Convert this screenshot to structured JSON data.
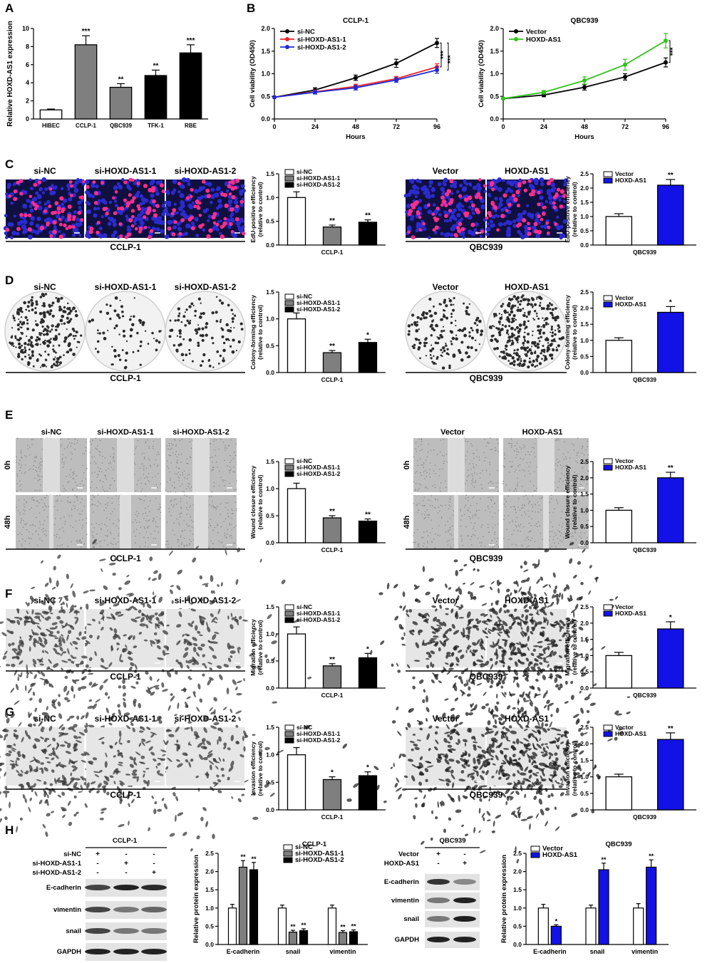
{
  "colors": {
    "red": "#e8242b",
    "blue": "#1f2ad8",
    "green": "#33c21f",
    "gray": "#7f7f7f",
    "black": "#000000",
    "white": "#ffffff",
    "strongBlue": "#1212e6",
    "nucleus": "#2b2bd0",
    "edu": "#ff2e8a"
  },
  "chart_data": [
    {
      "id": "A",
      "panel": "A",
      "type": "bar",
      "ylabel": "Relative HOXD-AS1 expression",
      "ylim": [
        0,
        10
      ],
      "yticks": [
        0,
        2,
        4,
        6,
        8,
        10
      ],
      "categories": [
        "HIBEC",
        "CCLP-1",
        "QBC939",
        "TFK-1",
        "RBE"
      ],
      "values": [
        1.0,
        8.2,
        3.5,
        4.8,
        7.3
      ],
      "errors": [
        0.1,
        1.0,
        0.4,
        0.6,
        0.9
      ],
      "fills": [
        "white",
        "gray",
        "gray",
        "black",
        "black"
      ],
      "sig": [
        "",
        "***",
        "**",
        "**",
        "***"
      ]
    },
    {
      "id": "B1",
      "panel": "B",
      "type": "line",
      "title": "CCLP-1",
      "xlabel": "Hours",
      "ylabel": "Cell viability (OD450)",
      "ylim": [
        0,
        2.0
      ],
      "yticks": [
        0,
        0.5,
        1.0,
        1.5,
        2.0
      ],
      "x": [
        0,
        24,
        48,
        72,
        96
      ],
      "series": [
        {
          "name": "si-NC",
          "color": "black",
          "values": [
            0.48,
            0.64,
            0.91,
            1.23,
            1.68
          ],
          "errors": [
            0,
            0.05,
            0.06,
            0.09,
            0.1
          ]
        },
        {
          "name": "si-HOXD-AS1-1",
          "color": "red",
          "values": [
            0.48,
            0.6,
            0.72,
            0.89,
            1.15
          ],
          "errors": [
            0,
            0.04,
            0.05,
            0.05,
            0.07
          ]
        },
        {
          "name": "si-HOXD-AS1-2",
          "color": "blue",
          "values": [
            0.48,
            0.59,
            0.69,
            0.86,
            1.08
          ],
          "errors": [
            0,
            0.04,
            0.05,
            0.05,
            0.07
          ]
        }
      ],
      "sig": [
        "***",
        "***"
      ]
    },
    {
      "id": "B2",
      "panel": "",
      "type": "line",
      "title": "QBC939",
      "xlabel": "Hours",
      "ylabel": "Cell viability (OD450)",
      "ylim": [
        0,
        2.0
      ],
      "yticks": [
        0,
        0.5,
        1.0,
        1.5,
        2.0
      ],
      "x": [
        0,
        24,
        48,
        72,
        96
      ],
      "series": [
        {
          "name": "Vector",
          "color": "black",
          "values": [
            0.45,
            0.53,
            0.7,
            0.93,
            1.25
          ],
          "errors": [
            0,
            0.04,
            0.06,
            0.07,
            0.1
          ]
        },
        {
          "name": "HOXD-AS1",
          "color": "green",
          "values": [
            0.45,
            0.59,
            0.85,
            1.2,
            1.73
          ],
          "errors": [
            0,
            0.04,
            0.08,
            0.12,
            0.16
          ]
        }
      ],
      "sig": [
        "***"
      ]
    },
    {
      "id": "C1",
      "panel": "",
      "type": "bar",
      "ylabel": "EdU-positive efficiency (relative to control)",
      "xlabel": "CCLP-1",
      "ylim": [
        0,
        1.5
      ],
      "yticks": [
        0,
        0.5,
        1.0,
        1.5
      ],
      "legend": [
        "si-NC",
        "si-HOXD-AS1-1",
        "si-HOXD-AS1-2"
      ],
      "fills": [
        "white",
        "gray",
        "black"
      ],
      "values": [
        1.0,
        0.38,
        0.48
      ],
      "errors": [
        0.12,
        0.04,
        0.05
      ],
      "sig": [
        "",
        "**",
        "**"
      ]
    },
    {
      "id": "C2",
      "panel": "",
      "type": "bar",
      "ylabel": "EdU-positive efficiency (relative to control)",
      "xlabel": "QBC939",
      "ylim": [
        0,
        2.5
      ],
      "yticks": [
        0,
        0.5,
        1.0,
        1.5,
        2.0,
        2.5
      ],
      "legend": [
        "Vector",
        "HOXD-AS1"
      ],
      "fills": [
        "white",
        "strongBlue"
      ],
      "values": [
        1.0,
        2.1
      ],
      "errors": [
        0.1,
        0.2
      ],
      "sig": [
        "",
        "**"
      ]
    },
    {
      "id": "D1",
      "panel": "",
      "type": "bar",
      "ylabel": "Colony-forming efficiency (relative to control)",
      "xlabel": "CCLP-1",
      "ylim": [
        0,
        1.5
      ],
      "yticks": [
        0,
        0.5,
        1.0,
        1.5
      ],
      "legend": [
        "si-NC",
        "si-HOXD-AS1-1",
        "si-HOXD-AS1-2"
      ],
      "fills": [
        "white",
        "gray",
        "black"
      ],
      "values": [
        1.0,
        0.37,
        0.56
      ],
      "errors": [
        0.11,
        0.04,
        0.06
      ],
      "sig": [
        "",
        "**",
        "*"
      ]
    },
    {
      "id": "D2",
      "panel": "",
      "type": "bar",
      "ylabel": "Colony-forming efficiency (relative to control)",
      "xlabel": "QBC939",
      "ylim": [
        0,
        2.5
      ],
      "yticks": [
        0,
        0.5,
        1.0,
        1.5,
        2.0,
        2.5
      ],
      "legend": [
        "Vector",
        "HOXD-AS1"
      ],
      "fills": [
        "white",
        "strongBlue"
      ],
      "values": [
        1.0,
        1.87
      ],
      "errors": [
        0.08,
        0.18
      ],
      "sig": [
        "",
        "*"
      ]
    },
    {
      "id": "E1",
      "panel": "",
      "type": "bar",
      "ylabel": "Wound closure efficiency (relative to control)",
      "xlabel": "CCLP-1",
      "ylim": [
        0,
        1.5
      ],
      "yticks": [
        0,
        0.5,
        1.0,
        1.5
      ],
      "legend": [
        "si-NC",
        "si-HOXD-AS1-1",
        "si-HOXD-AS1-2"
      ],
      "fills": [
        "white",
        "gray",
        "black"
      ],
      "values": [
        1.0,
        0.46,
        0.4
      ],
      "errors": [
        0.1,
        0.04,
        0.04
      ],
      "sig": [
        "",
        "**",
        "**"
      ]
    },
    {
      "id": "E2",
      "panel": "",
      "type": "bar",
      "ylabel": "Wound closure efficiency (relative to control)",
      "xlabel": "QBC939",
      "ylim": [
        0,
        2.5
      ],
      "yticks": [
        0,
        0.5,
        1.0,
        1.5,
        2.0,
        2.5
      ],
      "legend": [
        "Vector",
        "HOXD-AS1"
      ],
      "fills": [
        "white",
        "strongBlue"
      ],
      "values": [
        1.0,
        2.0
      ],
      "errors": [
        0.08,
        0.17
      ],
      "sig": [
        "",
        "**"
      ]
    },
    {
      "id": "F1",
      "panel": "",
      "type": "bar",
      "ylabel": "Migration efficiency (relative to control)",
      "xlabel": "CCLP-1",
      "ylim": [
        0,
        1.5
      ],
      "yticks": [
        0,
        0.5,
        1.0,
        1.5
      ],
      "legend": [
        "si-NC",
        "si-HOXD-AS1-1",
        "si-HOXD-AS1-2"
      ],
      "fills": [
        "white",
        "gray",
        "black"
      ],
      "values": [
        1.0,
        0.41,
        0.56
      ],
      "errors": [
        0.13,
        0.04,
        0.08
      ],
      "sig": [
        "",
        "**",
        "*"
      ]
    },
    {
      "id": "F2",
      "panel": "",
      "type": "bar",
      "ylabel": "Migration efficiency (relative to control)",
      "xlabel": "QBC939",
      "ylim": [
        0,
        2.5
      ],
      "yticks": [
        0,
        0.5,
        1.0,
        1.5,
        2.0,
        2.5
      ],
      "legend": [
        "Vector",
        "HOXD-AS1"
      ],
      "fills": [
        "white",
        "strongBlue"
      ],
      "values": [
        1.0,
        1.82
      ],
      "errors": [
        0.1,
        0.22
      ],
      "sig": [
        "",
        "*"
      ]
    },
    {
      "id": "G1",
      "panel": "",
      "type": "bar",
      "ylabel": "Invasion efficiency (relative to control)",
      "xlabel": "CCLP-1",
      "ylim": [
        0,
        1.5
      ],
      "yticks": [
        0,
        0.5,
        1.0,
        1.5
      ],
      "legend": [
        "si-NC",
        "si-HOXD-AS1-1",
        "si-HOXD-AS1-2"
      ],
      "fills": [
        "white",
        "gray",
        "black"
      ],
      "values": [
        1.0,
        0.55,
        0.62
      ],
      "errors": [
        0.13,
        0.05,
        0.07
      ],
      "sig": [
        "",
        "*",
        "*"
      ]
    },
    {
      "id": "G2",
      "panel": "",
      "type": "bar",
      "ylabel": "Invasion efficiency (relative to control)",
      "xlabel": "QBC939",
      "ylim": [
        0,
        2.5
      ],
      "yticks": [
        0,
        0.5,
        1.0,
        1.5,
        2.0,
        2.5
      ],
      "legend": [
        "Vector",
        "HOXD-AS1"
      ],
      "fills": [
        "white",
        "strongBlue"
      ],
      "values": [
        1.0,
        2.13
      ],
      "errors": [
        0.08,
        0.2
      ],
      "sig": [
        "",
        "**"
      ]
    },
    {
      "id": "H1",
      "panel": "",
      "type": "grouped-bar",
      "title": "CCLP-1",
      "ylabel": "Relative protein expression",
      "ylim": [
        0,
        2.5
      ],
      "yticks": [
        0,
        0.5,
        1.0,
        1.5,
        2.0,
        2.5
      ],
      "categories": [
        "E-cadherin",
        "snail",
        "vimentin"
      ],
      "fills": [
        "white",
        "gray",
        "black"
      ],
      "series": [
        {
          "name": "si-NC",
          "values": [
            1.0,
            1.0,
            1.0
          ],
          "errors": [
            0.1,
            0.08,
            0.08
          ],
          "sig": [
            "",
            "",
            ""
          ]
        },
        {
          "name": "si-HOXD-AS1-1",
          "values": [
            2.12,
            0.34,
            0.33
          ],
          "errors": [
            0.18,
            0.05,
            0.05
          ],
          "sig": [
            "**",
            "**",
            "**"
          ]
        },
        {
          "name": "si-HOXD-AS1-2",
          "values": [
            2.05,
            0.38,
            0.35
          ],
          "errors": [
            0.2,
            0.05,
            0.05
          ],
          "sig": [
            "**",
            "**",
            "**"
          ]
        }
      ]
    },
    {
      "id": "H2",
      "panel": "",
      "type": "grouped-bar",
      "title": "QBC939",
      "ylabel": "Relative protein expression",
      "ylim": [
        0,
        2.5
      ],
      "yticks": [
        0,
        0.5,
        1.0,
        1.5,
        2.0,
        2.5
      ],
      "categories": [
        "E-cadherin",
        "snail",
        "vimentin"
      ],
      "fills": [
        "white",
        "strongBlue"
      ],
      "series": [
        {
          "name": "Vector",
          "values": [
            1.0,
            1.0,
            1.0
          ],
          "errors": [
            0.1,
            0.08,
            0.12
          ],
          "sig": [
            "",
            "",
            ""
          ]
        },
        {
          "name": "HOXD-AS1",
          "values": [
            0.5,
            2.05,
            2.12
          ],
          "errors": [
            0.04,
            0.18,
            0.2
          ],
          "sig": [
            "*",
            "**",
            "**"
          ]
        }
      ]
    }
  ],
  "image_panels": {
    "C": {
      "letter": "C",
      "left": {
        "labels": [
          "si-NC",
          "si-HOXD-AS1-1",
          "si-HOXD-AS1-2"
        ],
        "caption": "CCLP-1"
      },
      "right": {
        "labels": [
          "Vector",
          "HOXD-AS1"
        ],
        "caption": "QBC939"
      }
    },
    "D": {
      "letter": "D",
      "left": {
        "labels": [
          "si-NC",
          "si-HOXD-AS1-1",
          "si-HOXD-AS1-2"
        ],
        "caption": "CCLP-1"
      },
      "right": {
        "labels": [
          "Vector",
          "HOXD-AS1"
        ],
        "caption": "QBC939"
      }
    },
    "E": {
      "letter": "E",
      "left": {
        "labels": [
          "si-NC",
          "si-HOXD-AS1-1",
          "si-HOXD-AS1-2"
        ],
        "caption": "CCLP-1"
      },
      "right": {
        "labels": [
          "Vector",
          "HOXD-AS1"
        ],
        "caption": "QBC939"
      },
      "rows": [
        "0h",
        "48h"
      ]
    },
    "F": {
      "letter": "F",
      "left": {
        "labels": [
          "si-NC",
          "si-HOXD-AS1-1",
          "si-HOXD-AS1-2"
        ],
        "caption": "CCLP-1"
      },
      "right": {
        "labels": [
          "Vector",
          "HOXD-AS1"
        ],
        "caption": "QBC939"
      }
    },
    "G": {
      "letter": "G",
      "left": {
        "labels": [
          "si-NC",
          "si-HOXD-AS1-1",
          "si-HOXD-AS1-2"
        ],
        "caption": "CCLP-1"
      },
      "right": {
        "labels": [
          "Vector",
          "HOXD-AS1"
        ],
        "caption": "QBC939"
      }
    }
  },
  "western": {
    "letter": "H",
    "left": {
      "title": "CCLP-1",
      "conditions": [
        "si-NC",
        "si-HOXD-AS1-1",
        "si-HOXD-AS1-2"
      ],
      "marks": [
        [
          "+",
          "-",
          "-"
        ],
        [
          "-",
          "+",
          "-"
        ],
        [
          "-",
          "-",
          "+"
        ]
      ],
      "proteins": [
        "E-cadherin",
        "vimentin",
        "snail",
        "GAPDH"
      ]
    },
    "right": {
      "title": "QBC939",
      "conditions": [
        "Vector",
        "HOXD-AS1"
      ],
      "marks": [
        [
          "+",
          "-"
        ],
        [
          "-",
          "+"
        ]
      ],
      "proteins": [
        "E-cadherin",
        "vimentin",
        "snail",
        "GAPDH"
      ]
    }
  }
}
